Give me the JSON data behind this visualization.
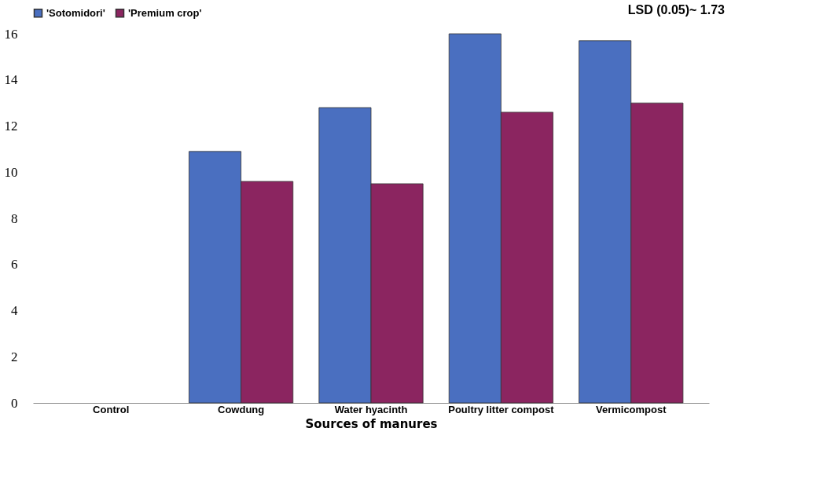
{
  "chart_data": {
    "type": "bar",
    "xlabel": "Sources of manures",
    "categories": [
      "Control",
      "Cowdung",
      "Water hyacinth",
      "Poultry litter compost",
      "Vermicompost"
    ],
    "series": [
      {
        "name": "'Sotomidori'",
        "color": "#4a6fc0",
        "values": [
          null,
          10.9,
          12.8,
          16.0,
          15.7
        ]
      },
      {
        "name": "'Premium crop'",
        "color": "#8b2560",
        "values": [
          null,
          9.6,
          9.5,
          12.6,
          13.0
        ]
      }
    ],
    "ylim": [
      0,
      16
    ],
    "yticks": [
      0,
      2,
      4,
      6,
      8,
      10,
      12,
      14,
      16
    ],
    "grid": false,
    "legend": "top",
    "annotations": [
      "LSD (0.05)~ 1.73"
    ]
  }
}
